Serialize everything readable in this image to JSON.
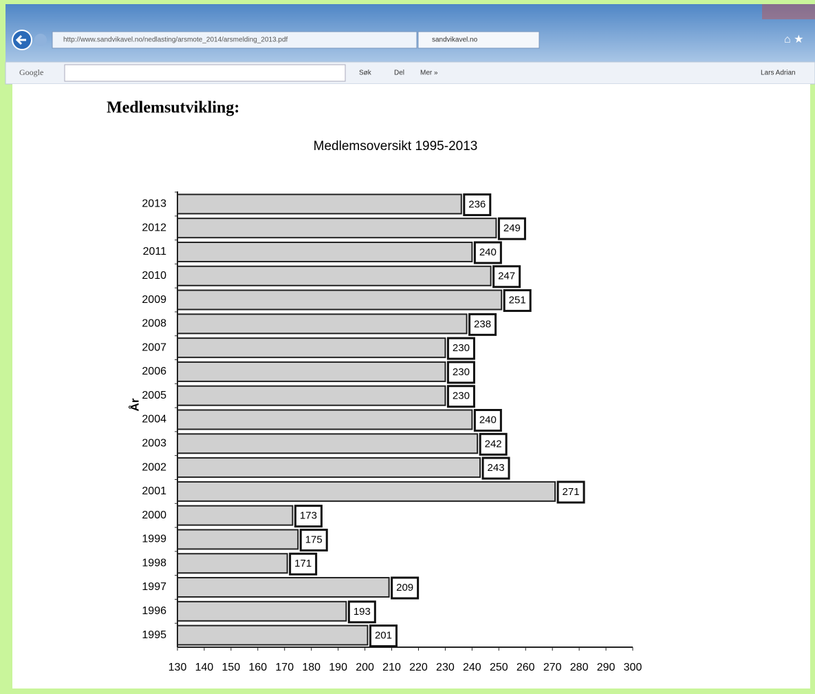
{
  "browser": {
    "url": "http://www.sandvikavel.no/nedlasting/arsmote_2014/arsmelding_2013.pdf",
    "tab": "sandvikavel.no"
  },
  "toolbar": {
    "google": "Google",
    "search": "Søk",
    "share": "Del",
    "more": "Mer »",
    "user": "Lars Adrian"
  },
  "document": {
    "heading": "Medlemsutvikling:"
  },
  "chart_data": {
    "type": "bar",
    "orientation": "horizontal",
    "title": "Medlemsoversikt 1995-2013",
    "y_label": "År",
    "categories": [
      "2013",
      "2012",
      "2011",
      "2010",
      "2009",
      "2008",
      "2007",
      "2006",
      "2005",
      "2004",
      "2003",
      "2002",
      "2001",
      "2000",
      "1999",
      "1998",
      "1997",
      "1996",
      "1995"
    ],
    "values": [
      236,
      249,
      240,
      247,
      251,
      238,
      230,
      230,
      230,
      240,
      242,
      243,
      271,
      173,
      175,
      171,
      209,
      193,
      201
    ],
    "color": "#d0d0d0",
    "xlim": [
      130,
      300
    ],
    "xticks": [
      130,
      140,
      150,
      160,
      170,
      180,
      190,
      200,
      210,
      220,
      230,
      240,
      250,
      260,
      270,
      280,
      290,
      300
    ],
    "grid": false
  }
}
